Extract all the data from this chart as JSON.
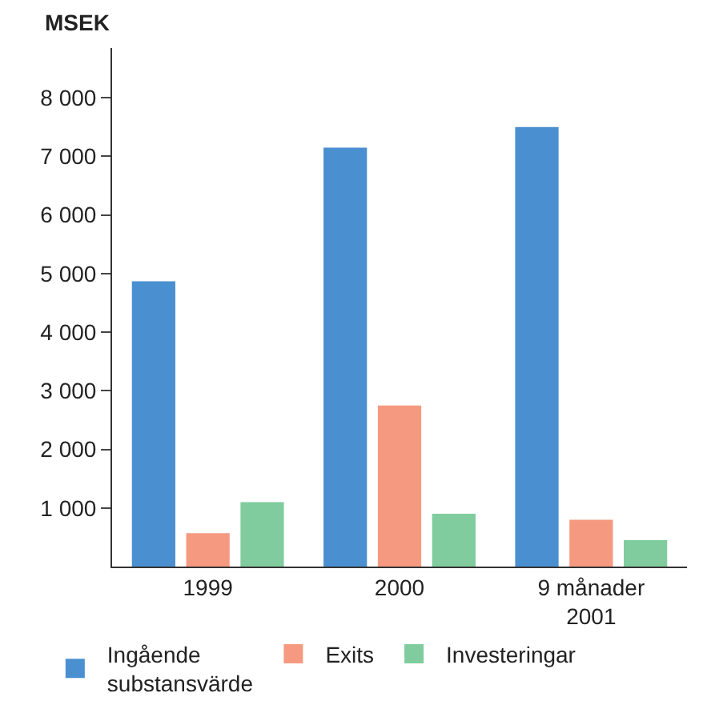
{
  "chart_data": {
    "type": "bar",
    "ylabel": "MSEK",
    "categories": [
      "1999",
      "2000",
      "9 månader\n2001"
    ],
    "series": [
      {
        "name": "Ingående\nsubstansvärde",
        "color": "#4a8fd0",
        "values": [
          4870,
          7150,
          7500
        ]
      },
      {
        "name": "Exits",
        "color": "#f59a80",
        "values": [
          570,
          2750,
          800
        ]
      },
      {
        "name": "Investeringar",
        "color": "#80cc9e",
        "values": [
          1100,
          900,
          450
        ]
      }
    ],
    "ylim": [
      0,
      8850
    ],
    "yticks": [
      {
        "value": 1000,
        "label": "1 000"
      },
      {
        "value": 2000,
        "label": "2 000"
      },
      {
        "value": 3000,
        "label": "3 000"
      },
      {
        "value": 4000,
        "label": "4 000"
      },
      {
        "value": 5000,
        "label": "5 000"
      },
      {
        "value": 6000,
        "label": "6 000"
      },
      {
        "value": 7000,
        "label": "7 000"
      },
      {
        "value": 8000,
        "label": "8 000"
      }
    ],
    "grid": false,
    "legend": "bottom"
  }
}
